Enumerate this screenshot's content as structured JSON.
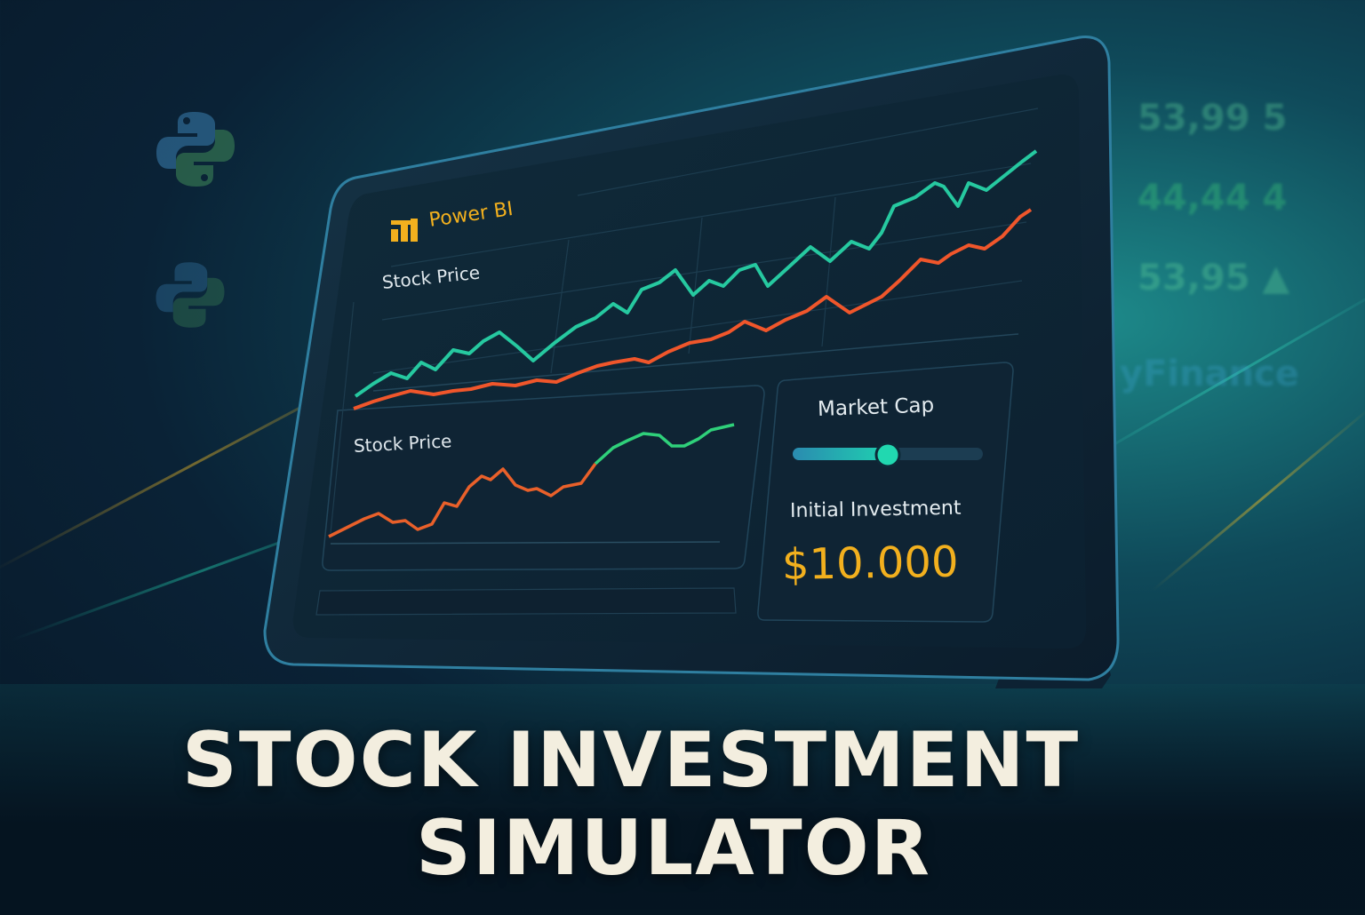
{
  "brand": {
    "name": "Power BI"
  },
  "panels": {
    "top_chart_label": "Stock Price",
    "bottom_chart_label": "Stock Price",
    "control_label": "Market Cap",
    "investment_label": "Initial Investment",
    "investment_value": "$10.000",
    "slider_level": 0.5
  },
  "background_tickers": [
    "53,99 5",
    "44,44 4",
    "53,95 ▲",
    "yFinance"
  ],
  "title": {
    "line1": "STOCK INVESTMENT",
    "line2": "SIMULATOR"
  },
  "colors": {
    "accent_gold": "#f2b01e",
    "line_green": "#26d3a6",
    "line_red": "#f0562b",
    "title_cream": "#f3eedf"
  }
}
